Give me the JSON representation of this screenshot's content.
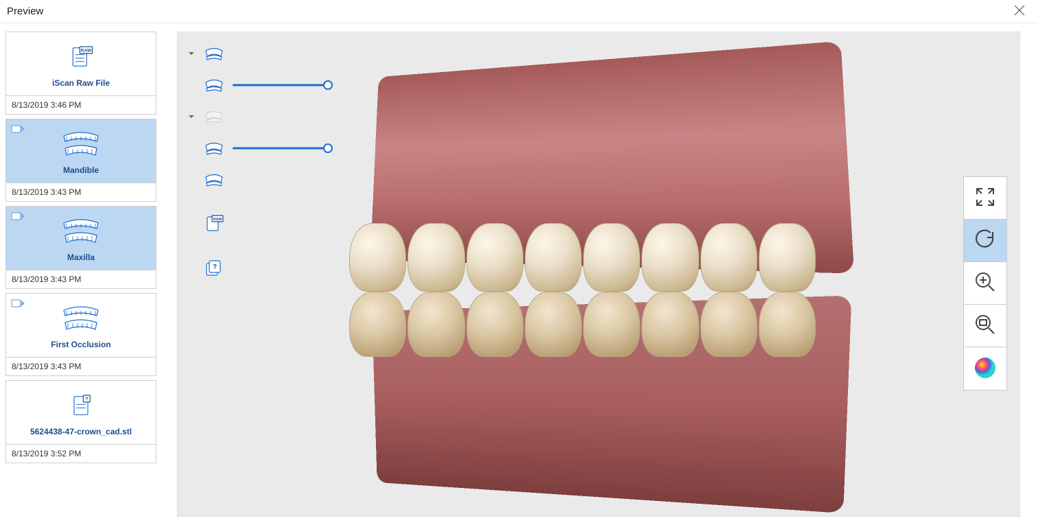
{
  "window": {
    "title": "Preview"
  },
  "colors": {
    "selection_bg": "#bcd7f2",
    "accent": "#1c6dd0",
    "label_blue": "#1c4d8f",
    "viewer_bg": "#eaeaea",
    "border": "#d0d0d0"
  },
  "sidebar": {
    "items": [
      {
        "icon": "raw-file",
        "label": "iScan Raw File",
        "timestamp": "8/13/2019 3:46 PM",
        "selected": false,
        "has_scanner_badge": false
      },
      {
        "icon": "mandible",
        "label": "Mandible",
        "timestamp": "8/13/2019 3:43 PM",
        "selected": true,
        "has_scanner_badge": true
      },
      {
        "icon": "maxilla",
        "label": "Maxilla",
        "timestamp": "8/13/2019 3:43 PM",
        "selected": true,
        "has_scanner_badge": true
      },
      {
        "icon": "occlusion",
        "label": "First Occlusion",
        "timestamp": "8/13/2019 3:43 PM",
        "selected": false,
        "has_scanner_badge": true
      },
      {
        "icon": "stl-file",
        "label": "5624438-47-crown_cad.stl",
        "timestamp": "8/13/2019 3:52 PM",
        "selected": false,
        "has_scanner_badge": false
      }
    ]
  },
  "layer_panel": {
    "rows": [
      {
        "kind": "group",
        "icon": "arch-blue",
        "expanded": true,
        "disabled": false
      },
      {
        "kind": "layer",
        "icon": "arch-blue",
        "has_slider": true,
        "slider_value": 100,
        "disabled": false
      },
      {
        "kind": "group",
        "icon": "arch-grey",
        "expanded": true,
        "disabled": true
      },
      {
        "kind": "layer",
        "icon": "arch-blue",
        "has_slider": true,
        "slider_value": 100,
        "disabled": false
      },
      {
        "kind": "layer",
        "icon": "arch-blue",
        "has_slider": false,
        "disabled": false
      },
      {
        "kind": "layer",
        "icon": "raw-small",
        "has_slider": false,
        "disabled": false
      },
      {
        "kind": "layer",
        "icon": "help-stack",
        "has_slider": false,
        "disabled": false
      }
    ]
  },
  "tools": [
    {
      "name": "fit-view",
      "icon": "expand",
      "active": false
    },
    {
      "name": "rotate",
      "icon": "rotate-cw",
      "active": true
    },
    {
      "name": "zoom",
      "icon": "zoom-plus",
      "active": false
    },
    {
      "name": "zoom-area",
      "icon": "zoom-rect",
      "active": false
    },
    {
      "name": "color-map",
      "icon": "color-sphere",
      "active": false
    }
  ],
  "model": {
    "description": "3D dental scan, upper and lower arches in occlusion, right-lateral view",
    "upper_teeth_count": 8,
    "lower_teeth_count": 8,
    "gum_color_top": "#b86d6d",
    "gum_color_bottom": "#8e4949",
    "tooth_color": "#eadfc8"
  }
}
